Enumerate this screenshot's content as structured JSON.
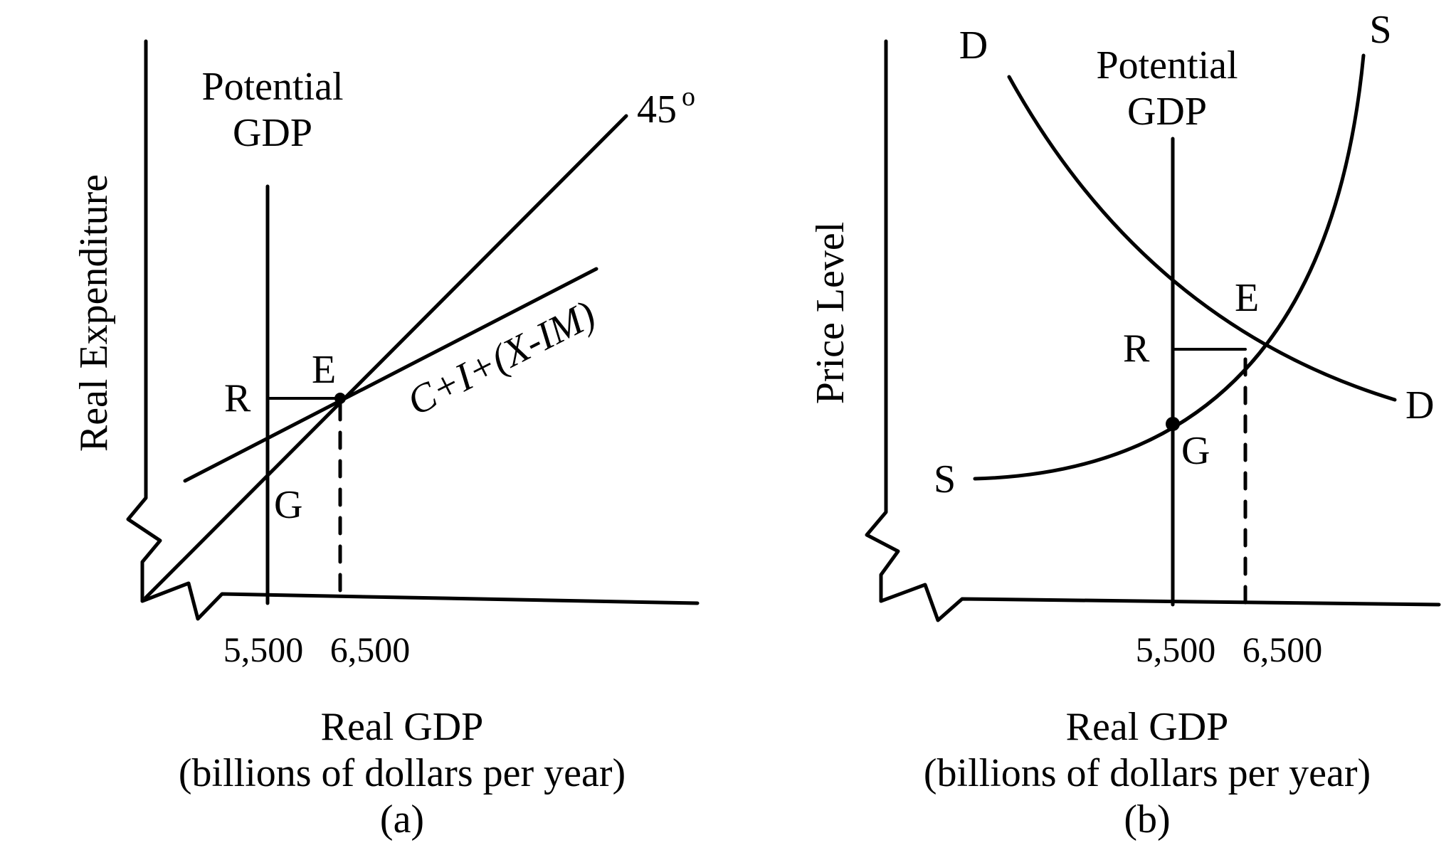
{
  "panel_a": {
    "potential_line1": "Potential",
    "potential_line2": "GDP",
    "label_45": "45",
    "degree_symbol": "o",
    "ylabel": "Real Expenditure",
    "label_R": "R",
    "label_E": "E",
    "label_G": "G",
    "curve_label": "C+I+(X-IM)",
    "tick_5500": "5,500",
    "tick_6500": "6,500",
    "xlabel_line1": "Real GDP",
    "xlabel_line2": "(billions of dollars per year)",
    "caption": "(a)"
  },
  "panel_b": {
    "label_D_top": "D",
    "label_S_top": "S",
    "potential_line1": "Potential",
    "potential_line2": "GDP",
    "ylabel": "Price Level",
    "label_E": "E",
    "label_R": "R",
    "label_D_right": "D",
    "label_G": "G",
    "label_S_left": "S",
    "tick_5500": "5,500",
    "tick_6500": "6,500",
    "xlabel_line1": "Real GDP",
    "xlabel_line2": "(billions of dollars per year)",
    "caption": "(b)"
  }
}
